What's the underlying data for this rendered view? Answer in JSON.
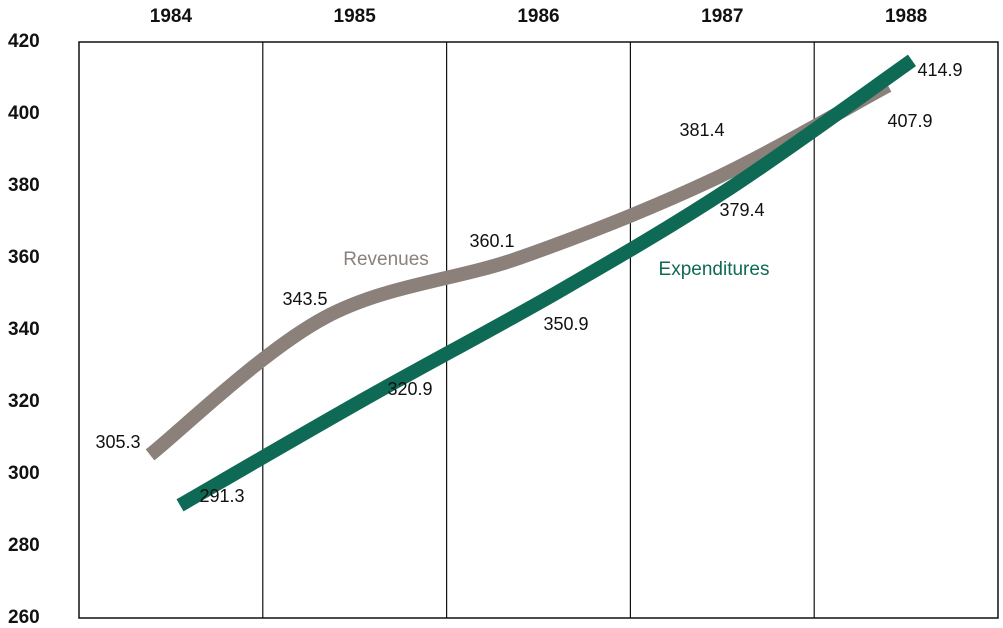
{
  "chart_data": {
    "type": "line",
    "categories": [
      "1984",
      "1985",
      "1986",
      "1987",
      "1988"
    ],
    "series": [
      {
        "name": "Revenues",
        "color": "#8b817a",
        "values": [
          305.3,
          343.5,
          360.1,
          381.4,
          407.9
        ]
      },
      {
        "name": "Expenditures",
        "color": "#0f6a55",
        "values": [
          291.3,
          320.9,
          350.9,
          379.4,
          414.9
        ]
      }
    ],
    "ylim": [
      260,
      420
    ],
    "yticks": [
      260,
      280,
      300,
      320,
      340,
      360,
      380,
      400,
      420
    ],
    "grid": false
  }
}
